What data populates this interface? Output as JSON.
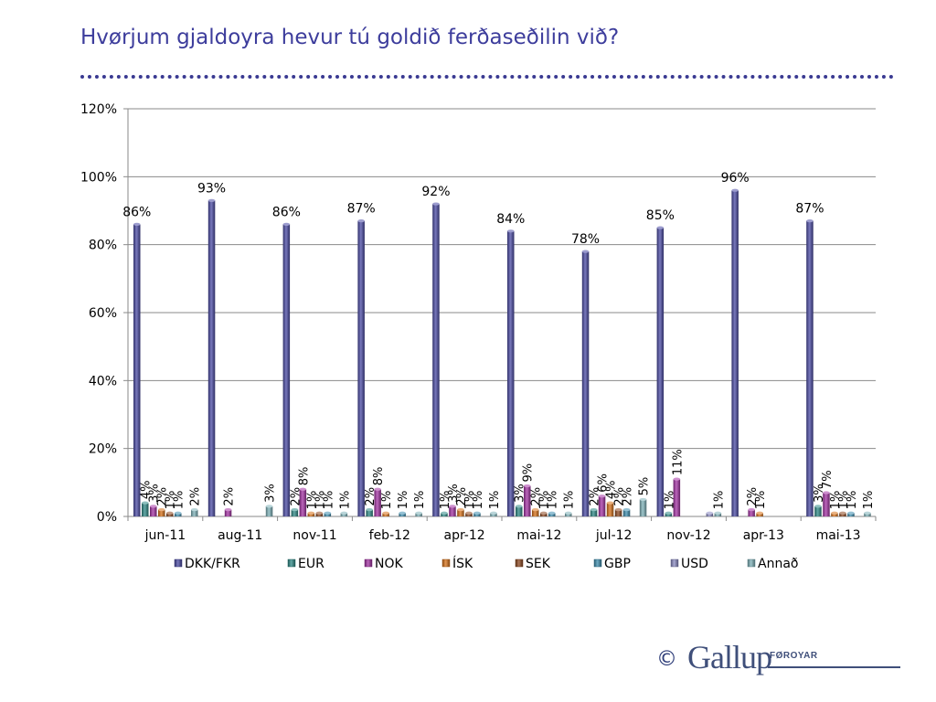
{
  "slide": {
    "title": "Hvørjum gjaldoyra hevur tú goldið ferðaseðilin við?"
  },
  "footer": {
    "copyright": "©",
    "logo_word": "Gallup",
    "logo_sub": "FØROYAR"
  },
  "chart_data": {
    "type": "bar",
    "title": "",
    "xlabel": "",
    "ylabel": "",
    "ylim": [
      0,
      120
    ],
    "yticks": [
      "0%",
      "20%",
      "40%",
      "60%",
      "80%",
      "100%",
      "120%"
    ],
    "grid": true,
    "legend_position": "bottom",
    "categories": [
      "jun-11",
      "aug-11",
      "nov-11",
      "feb-12",
      "apr-12",
      "mai-12",
      "jul-12",
      "nov-12",
      "apr-13",
      "mai-13"
    ],
    "series": [
      {
        "name": "DKK/FKR",
        "color": "#4b4ba5",
        "values": [
          86,
          93,
          86,
          87,
          92,
          84,
          78,
          85,
          96,
          87
        ],
        "labels": [
          "86%",
          "93%",
          "86%",
          "87%",
          "92%",
          "84%",
          "78%",
          "85%",
          "96%",
          "87%"
        ]
      },
      {
        "name": "EUR",
        "color": "#2f8a87",
        "values": [
          4,
          0,
          2,
          2,
          1,
          3,
          2,
          1,
          0,
          3
        ],
        "labels": [
          "4%",
          "",
          "2%",
          "2%",
          "1%",
          "3%",
          "2%",
          "1%",
          "",
          "3%"
        ]
      },
      {
        "name": "NOK",
        "color": "#a533a5",
        "values": [
          3,
          2,
          8,
          8,
          3,
          9,
          6,
          11,
          2,
          7
        ],
        "labels": [
          "3%",
          "2%",
          "8%",
          "8%",
          "3%",
          "9%",
          "6%",
          "11%",
          "2%",
          "7%"
        ]
      },
      {
        "name": "ÍSK",
        "color": "#d9731a",
        "values": [
          2,
          0,
          1,
          1,
          2,
          2,
          4,
          0,
          1,
          1
        ],
        "labels": [
          "2%",
          "",
          "1%",
          "1%",
          "2%",
          "2%",
          "4%",
          "",
          "1%",
          "1%"
        ]
      },
      {
        "name": "SEK",
        "color": "#8f4a22",
        "values": [
          1,
          0,
          1,
          0,
          1,
          1,
          2,
          0,
          0,
          1
        ],
        "labels": [
          "1%",
          "",
          "1%",
          "",
          "1%",
          "1%",
          "2%",
          "",
          "",
          "1%"
        ]
      },
      {
        "name": "GBP",
        "color": "#3f8fb0",
        "values": [
          1,
          0,
          1,
          1,
          1,
          1,
          2,
          0,
          0,
          1
        ],
        "labels": [
          "1%",
          "",
          "1%",
          "1%",
          "1%",
          "1%",
          "2%",
          "",
          "",
          "1%"
        ]
      },
      {
        "name": "USD",
        "color": "#8c8cc4",
        "values": [
          0,
          0,
          0,
          0,
          0,
          0,
          0,
          1,
          0,
          0
        ],
        "labels": [
          "",
          "",
          "",
          "",
          "",
          "",
          "",
          "",
          "",
          ""
        ]
      },
      {
        "name": "Annað",
        "color": "#7fb3ba",
        "values": [
          2,
          3,
          1,
          1,
          1,
          1,
          5,
          1,
          0,
          1
        ],
        "labels": [
          "2%",
          "3%",
          "1%",
          "1%",
          "1%",
          "1%",
          "5%",
          "1%",
          "",
          "1%"
        ]
      }
    ]
  }
}
